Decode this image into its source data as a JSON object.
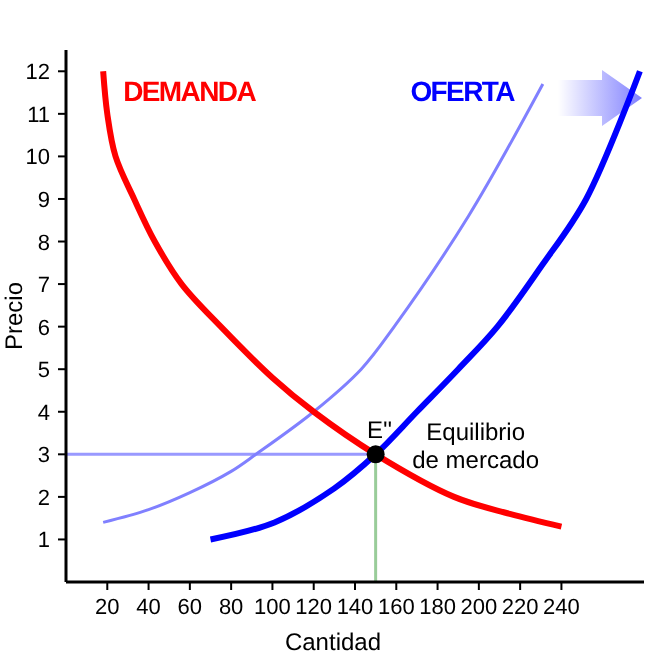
{
  "chart_data": {
    "type": "line",
    "xlabel": "Cantidad",
    "ylabel": "Precio",
    "xlim": [
      0,
      280
    ],
    "ylim": [
      0,
      12.5
    ],
    "xticks": [
      20,
      40,
      60,
      80,
      100,
      120,
      140,
      160,
      180,
      200,
      220,
      240
    ],
    "yticks": [
      1,
      2,
      3,
      4,
      5,
      6,
      7,
      8,
      9,
      10,
      11,
      12
    ],
    "grid": false,
    "marker": "none",
    "line_style": "solid",
    "series": [
      {
        "color": "#9999ff",
        "x": [
          0,
          150
        ],
        "values": [
          3,
          3
        ]
      },
      {
        "color": "#99cc99",
        "x": [
          150,
          150
        ],
        "values": [
          0,
          3
        ]
      },
      {
        "color": "#8080ff",
        "x": [
          18,
          40,
          60,
          80,
          92,
          120,
          143,
          159,
          195,
          231
        ],
        "values": [
          1.4,
          1.7,
          2.1,
          2.6,
          3,
          4,
          5,
          6,
          8.6,
          11.7
        ]
      },
      {
        "name": "DEMANDA",
        "color": "#ff0000",
        "x": [
          18,
          20,
          24,
          33,
          43,
          56,
          75,
          100,
          120,
          150,
          188,
          215,
          240
        ],
        "values": [
          12,
          11,
          10,
          9,
          8,
          7,
          6,
          4.8,
          4,
          3,
          2,
          1.6,
          1.3
        ]
      },
      {
        "name": "OFERTA",
        "color": "#0000ff",
        "x": [
          70,
          101,
          130,
          150,
          170,
          190,
          209,
          230,
          252,
          278
        ],
        "values": [
          1,
          1.4,
          2.2,
          3,
          4,
          5,
          6,
          7.4,
          9,
          12
        ]
      },
      {
        "type": "scatter",
        "marker": "circle",
        "color": "#000000",
        "x": [
          150
        ],
        "values": [
          3
        ]
      }
    ],
    "annotations": [
      {
        "text": "E''",
        "x": 150,
        "y": 3
      },
      {
        "text": "Equilibrio de mercado",
        "x": 150,
        "y": 3
      }
    ]
  }
}
